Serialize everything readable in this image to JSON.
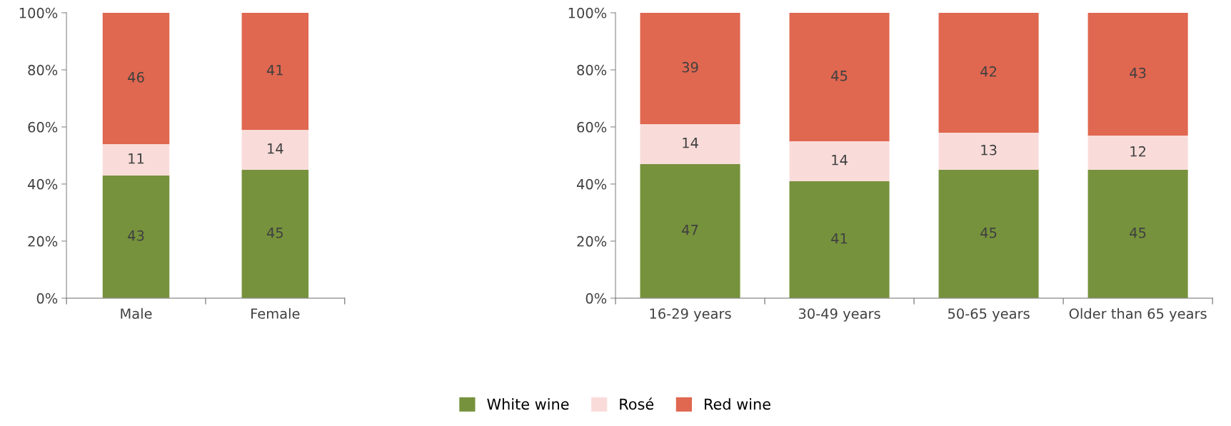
{
  "chart_data": [
    {
      "type": "bar",
      "stacked": true,
      "categories": [
        "Male",
        "Female"
      ],
      "ylim": [
        0,
        100
      ],
      "yticks": [
        {
          "value": 0,
          "label": "0%"
        },
        {
          "value": 20,
          "label": "20%"
        },
        {
          "value": 40,
          "label": "40%"
        },
        {
          "value": 60,
          "label": "60%"
        },
        {
          "value": 80,
          "label": "80%"
        },
        {
          "value": 100,
          "label": "100%"
        }
      ],
      "data_labels": true,
      "legend": "bottom",
      "series": [
        {
          "name": "White wine",
          "color": "#76923c",
          "values": [
            43,
            45
          ]
        },
        {
          "name": "Rosé",
          "color": "#f9dcda",
          "values": [
            11,
            14
          ]
        },
        {
          "name": "Red wine",
          "color": "#e06750",
          "values": [
            46,
            41
          ]
        }
      ]
    },
    {
      "type": "bar",
      "stacked": true,
      "categories": [
        "16-29 years",
        "30-49 years",
        "50-65 years",
        "Older than 65 years"
      ],
      "ylim": [
        0,
        100
      ],
      "yticks": [
        {
          "value": 0,
          "label": "0%"
        },
        {
          "value": 20,
          "label": "20%"
        },
        {
          "value": 40,
          "label": "40%"
        },
        {
          "value": 60,
          "label": "60%"
        },
        {
          "value": 80,
          "label": "80%"
        },
        {
          "value": 100,
          "label": "100%"
        }
      ],
      "data_labels": true,
      "legend": "bottom",
      "series": [
        {
          "name": "White wine",
          "color": "#76923c",
          "values": [
            47,
            41,
            45,
            45
          ]
        },
        {
          "name": "Rosé",
          "color": "#f9dcda",
          "values": [
            14,
            14,
            13,
            12
          ]
        },
        {
          "name": "Red wine",
          "color": "#e06750",
          "values": [
            39,
            45,
            42,
            43
          ]
        }
      ]
    }
  ]
}
